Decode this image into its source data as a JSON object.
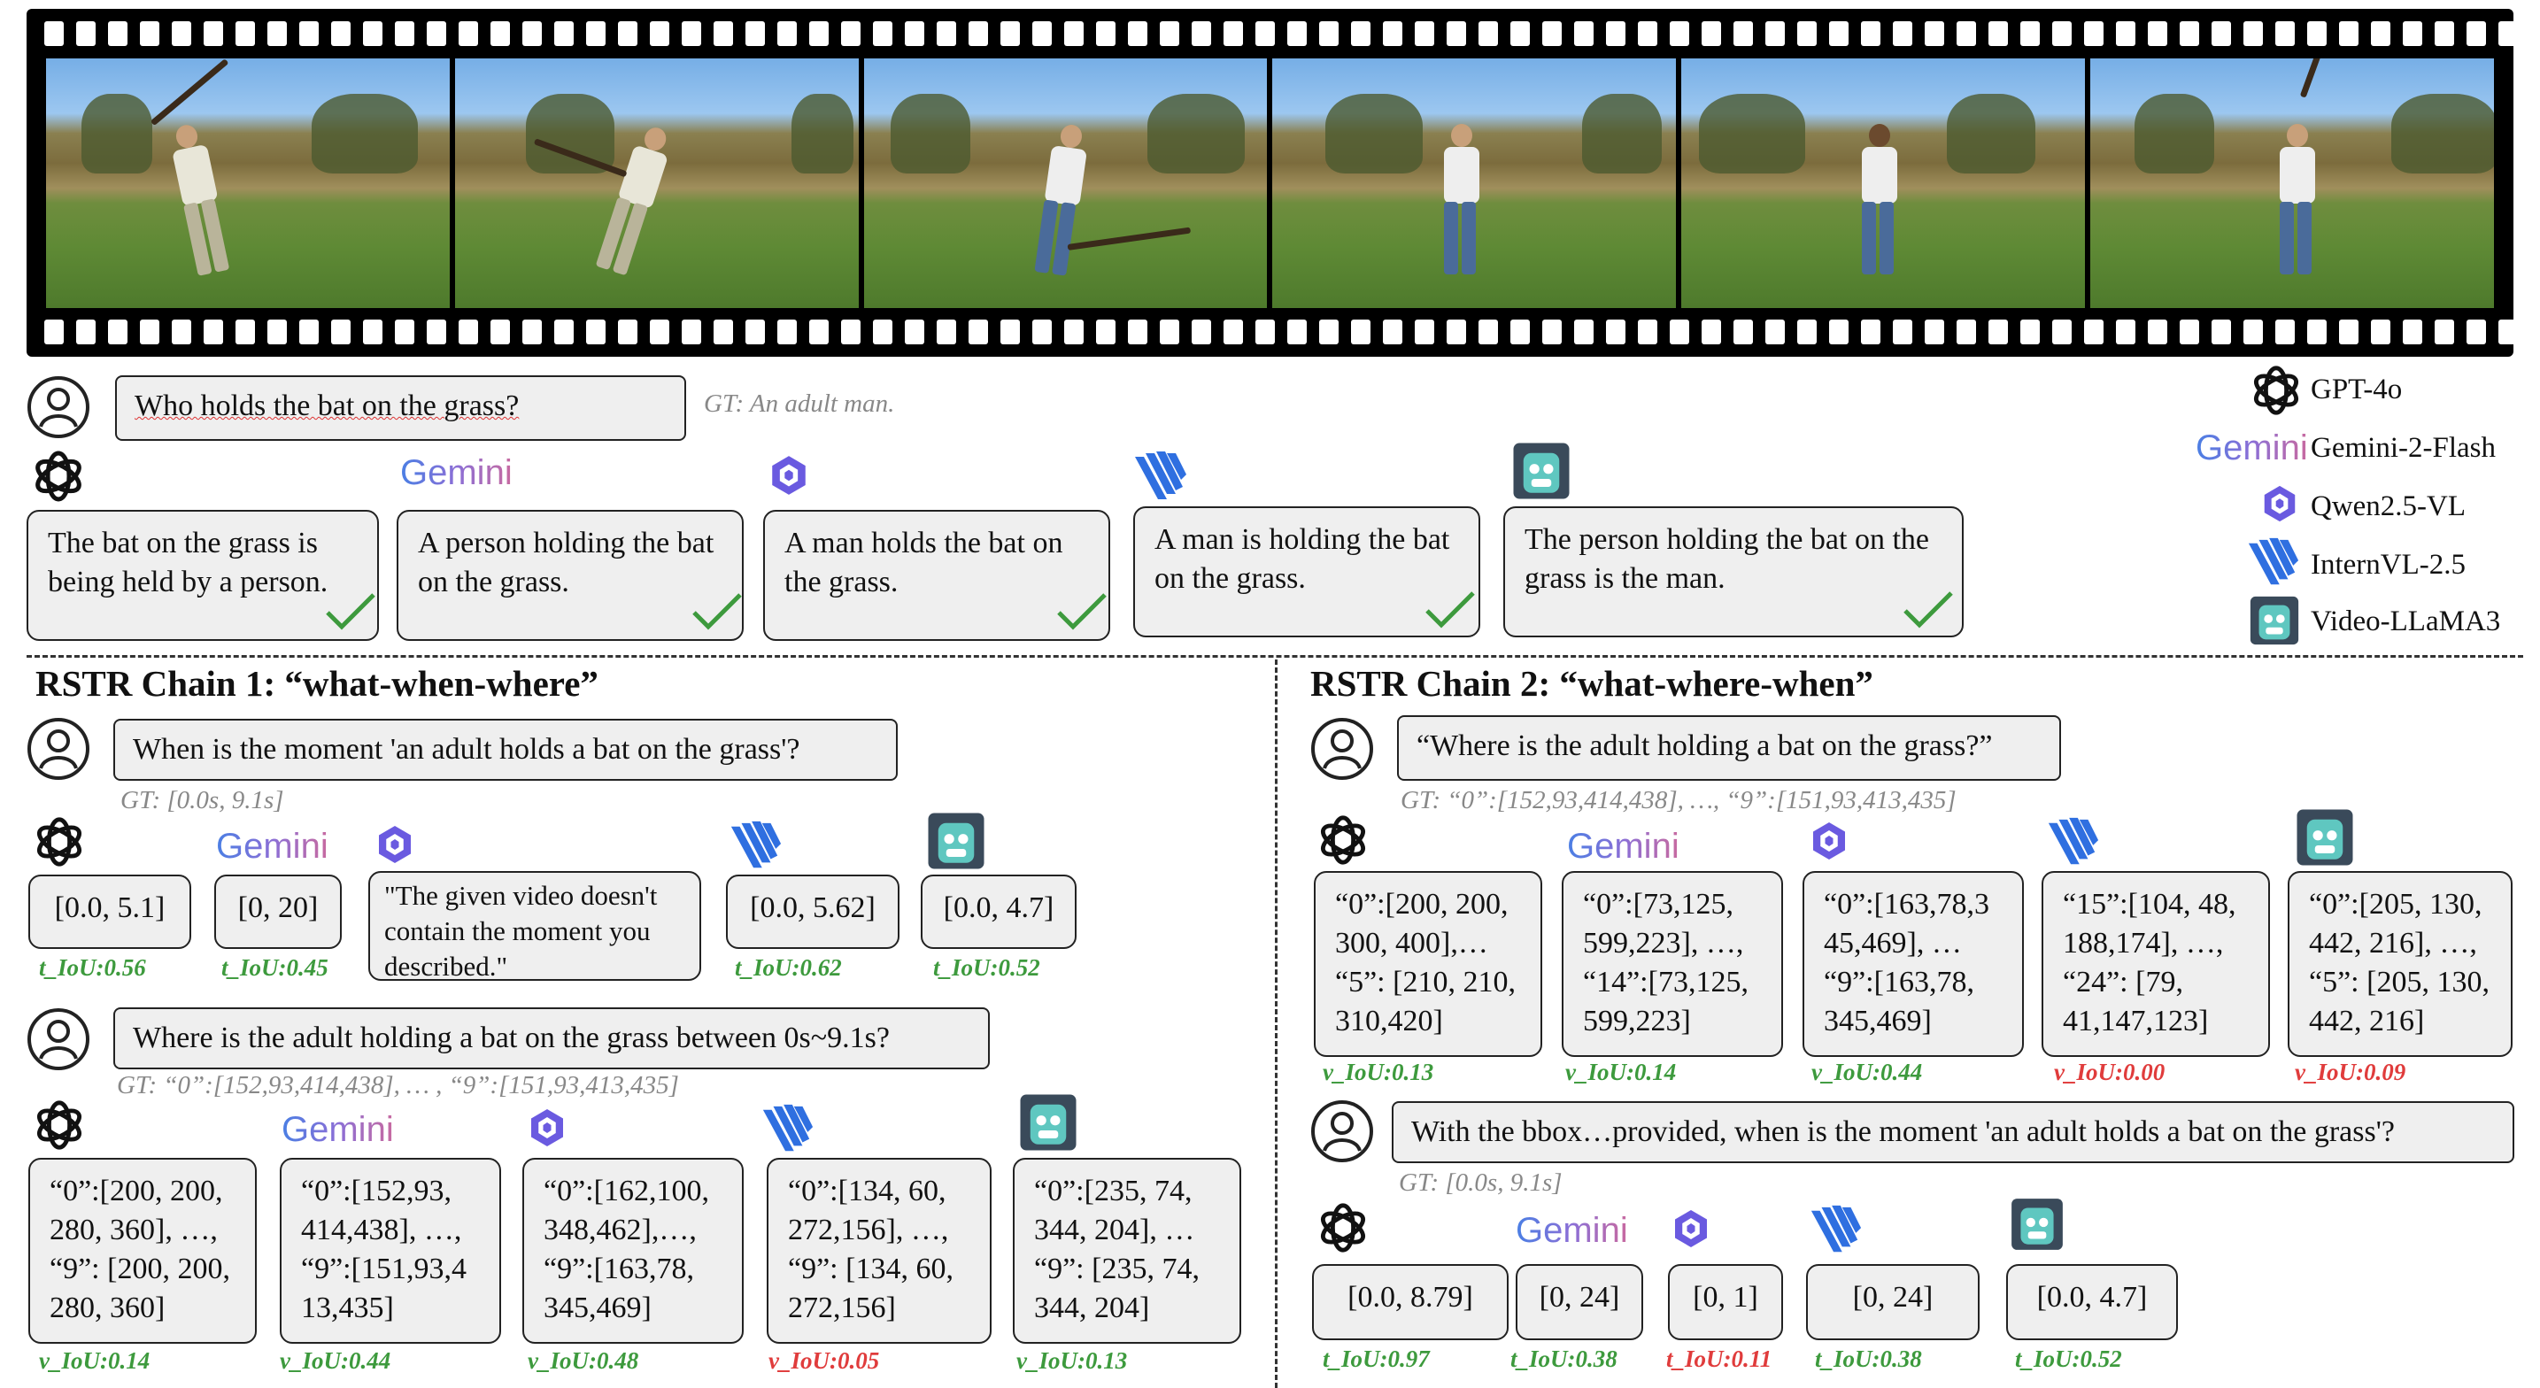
{
  "top": {
    "question": "Who holds the bat on the grass?",
    "gt": "GT: An adult man.",
    "answers": [
      "The bat on the grass is being held by a person.",
      "A person holding the bat on the grass.",
      "A man holds the bat on the grass.",
      "A man is holding the bat on the grass.",
      "The person holding the bat on the grass is the man."
    ]
  },
  "legend": [
    {
      "icon": "gpt-4o-icon",
      "label": "GPT-4o"
    },
    {
      "icon": "gemini-icon",
      "label": "Gemini-2-Flash"
    },
    {
      "icon": "qwen-icon",
      "label": "Qwen2.5-VL"
    },
    {
      "icon": "internvl-icon",
      "label": "InternVL-2.5"
    },
    {
      "icon": "video-llama-icon",
      "label": "Video-LLaMA3"
    }
  ],
  "gemini_logo_text": "Gemini",
  "chain1": {
    "title": "RSTR Chain 1: “what-when-where”",
    "q1": "When is the moment 'an adult holds a bat on the grass'?",
    "q1_gt": "GT: [0.0s, 9.1s]",
    "a1": [
      "[0.0, 5.1]",
      "[0, 20]",
      "\"The given video doesn't contain the moment you described.\"",
      "[0.0, 5.62]",
      "[0.0, 4.7]"
    ],
    "m1": [
      "t_IoU:0.56",
      "t_IoU:0.45",
      "t_IoU:0.62",
      "t_IoU:0.52"
    ],
    "q2": "Where is the adult holding a bat on the grass between 0s~9.1s?",
    "q2_gt": "GT: “0”:[152,93,414,438], … , “9”:[151,93,413,435]",
    "a2": [
      "“0”:[200, 200, 280, 360], …, “9”: [200, 200, 280, 360]",
      "“0”:[152,93, 414,438], …, “9”:[151,93,4 13,435]",
      "“0”:[162,100, 348,462],…, “9”:[163,78, 345,469]",
      "“0”:[134, 60, 272,156], …, “9”: [134, 60, 272,156]",
      "“0”:[235, 74, 344, 204], … “9”: [235, 74, 344, 204]"
    ],
    "m2": [
      "v_IoU:0.14",
      "v_IoU:0.44",
      "v_IoU:0.48",
      "v_IoU:0.05",
      "v_IoU:0.13"
    ]
  },
  "chain2": {
    "title": "RSTR Chain 2: “what-where-when”",
    "q1": "“Where is the adult holding a bat on the grass?”",
    "q1_gt": "GT: “0”:[152,93,414,438], …, “9”:[151,93,413,435]",
    "a1": [
      "“0”:[200, 200, 300, 400],… “5”: [210, 210, 310,420]",
      "“0”:[73,125, 599,223], …, “14”:[73,125, 599,223]",
      "“0”:[163,78,3 45,469], … “9”:[163,78, 345,469]",
      "“15”:[104, 48, 188,174], …, “24”: [79, 41,147,123]",
      "“0”:[205, 130, 442, 216], …, “5”: [205, 130, 442, 216]"
    ],
    "m1": [
      "v_IoU:0.13",
      "v_IoU:0.14",
      "v_IoU:0.44",
      "v_IoU:0.00",
      "v_IoU:0.09"
    ],
    "q2": "With the bbox…provided, when is the moment 'an adult holds a bat on the grass'?",
    "q2_gt": "GT: [0.0s, 9.1s]",
    "a2": [
      "[0.0, 8.79]",
      "[0, 24]",
      "[0, 1]",
      "[0, 24]",
      "[0.0, 4.7]"
    ],
    "m2": [
      "t_IoU:0.97",
      "t_IoU:0.38",
      "t_IoU:0.11",
      "t_IoU:0.38",
      "t_IoU:0.52"
    ]
  },
  "colors": {
    "good": "#3d9a3d",
    "bad": "#e03c3c"
  }
}
